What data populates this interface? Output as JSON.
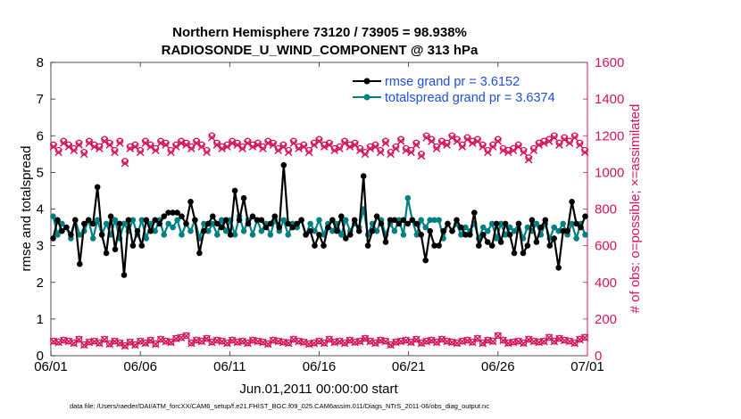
{
  "chart_data": {
    "type": "line",
    "title_line1": "Northern Hemisphere 73120 / 73905 = 98.938%",
    "title_line2": "RADIOSONDE_U_WIND_COMPONENT @ 313 hPa",
    "xlabel": "Jun.01,2011 00:00:00 start",
    "ylabel_left": "rmse and totalspread",
    "ylabel_right": "# of obs: o=possible; ×=assimilated",
    "footer": "data file: /Users/raeder/DAI/ATM_forcXX/CAM6_setup/f.e21.FHIST_BGC.f09_025.CAM6assim.011/Diags_NTrS_2011-06/obs_diag_output.nc",
    "x_ticks": [
      "06/01",
      "06/06",
      "06/11",
      "06/16",
      "06/21",
      "06/26",
      "07/01"
    ],
    "x_tick_days": [
      0,
      5,
      10,
      15,
      20,
      25,
      30
    ],
    "xlim_days": [
      0,
      30
    ],
    "ylim_left": [
      0,
      8
    ],
    "y_ticks_left": [
      "0",
      "1",
      "2",
      "3",
      "4",
      "5",
      "6",
      "7",
      "8"
    ],
    "ylim_right": [
      0,
      1600
    ],
    "y_ticks_right": [
      "0",
      "200",
      "400",
      "600",
      "800",
      "1000",
      "1200",
      "1400",
      "1600"
    ],
    "legend": [
      {
        "label": "rmse grand pr = 3.6152",
        "color": "#000000"
      },
      {
        "label": "totalspread grand pr = 3.6374",
        "color": "#008080"
      }
    ],
    "series": [
      {
        "name": "rmse",
        "color": "#000000",
        "axis": "left",
        "values": [
          3.2,
          3.7,
          3.4,
          3.5,
          3.3,
          3.7,
          2.5,
          3.6,
          3.7,
          3.6,
          4.6,
          3.3,
          2.8,
          3.8,
          2.9,
          3.6,
          2.2,
          3.7,
          3.0,
          3.4,
          3.0,
          3.7,
          3.4,
          3.7,
          3.6,
          3.8,
          3.9,
          3.9,
          3.9,
          3.8,
          3.6,
          4.2,
          3.7,
          2.8,
          3.4,
          3.6,
          3.8,
          3.6,
          3.5,
          3.7,
          3.3,
          4.5,
          3.7,
          4.3,
          3.6,
          3.8,
          3.7,
          3.7,
          3.5,
          3.6,
          3.8,
          3.5,
          5.2,
          3.6,
          3.5,
          3.6,
          3.7,
          3.3,
          3.4,
          3.0,
          3.3,
          3.0,
          3.5,
          3.7,
          3.4,
          3.8,
          3.2,
          3.3,
          3.7,
          3.4,
          4.9,
          3.0,
          3.4,
          3.8,
          3.6,
          3.1,
          3.7,
          3.7,
          3.6,
          3.7,
          3.6,
          3.7,
          3.6,
          3.3,
          2.6,
          3.4,
          3.0,
          3.0,
          3.4,
          3.6,
          3.4,
          3.7,
          3.5,
          3.3,
          3.3,
          3.9,
          3.0,
          3.3,
          3.1,
          3.0,
          3.6,
          3.1,
          3.6,
          3.3,
          2.8,
          3.6,
          2.8,
          3.0,
          3.7,
          3.1,
          3.5,
          3.7,
          3.0,
          3.2,
          2.4,
          3.4,
          3.4,
          4.2,
          3.6,
          3.5,
          3.8
        ]
      },
      {
        "name": "totalspread",
        "color": "#008080",
        "axis": "left",
        "values": [
          3.8,
          3.3,
          3.6,
          3.5,
          3.2,
          3.7,
          3.3,
          3.4,
          3.7,
          3.2,
          3.7,
          3.3,
          3.6,
          3.3,
          3.7,
          3.2,
          3.6,
          3.4,
          3.7,
          3.3,
          3.7,
          3.2,
          3.6,
          3.4,
          3.7,
          3.3,
          3.6,
          3.5,
          3.7,
          3.3,
          3.6,
          3.4,
          3.7,
          3.2,
          3.6,
          3.4,
          3.6,
          3.3,
          3.7,
          3.4,
          3.7,
          3.3,
          3.8,
          3.4,
          3.7,
          3.3,
          3.7,
          3.4,
          3.6,
          3.3,
          3.7,
          3.4,
          3.7,
          3.3,
          3.6,
          3.5,
          3.7,
          3.3,
          3.6,
          3.4,
          3.7,
          3.3,
          3.6,
          3.4,
          3.6,
          3.3,
          3.7,
          3.4,
          3.6,
          3.5,
          4.0,
          3.3,
          3.6,
          3.4,
          3.7,
          3.3,
          3.6,
          3.4,
          3.7,
          3.3,
          4.3,
          3.7,
          3.3,
          3.7,
          3.5,
          3.7,
          3.7,
          3.7,
          3.2,
          3.6,
          3.4,
          3.6,
          3.3,
          3.5,
          3.4,
          3.6,
          3.2,
          3.5,
          3.4,
          3.6,
          3.2,
          3.6,
          3.3,
          3.5,
          3.4,
          3.6,
          3.2,
          3.5,
          3.4,
          3.6,
          3.3,
          3.6,
          3.2,
          3.5,
          3.4,
          3.6,
          3.3,
          3.6,
          3.2,
          3.6,
          3.3
        ]
      },
      {
        "name": "obs possible (o)",
        "color": "#d4145a",
        "axis": "right",
        "marker": "circle",
        "values": [
          1150,
          1120,
          1170,
          1150,
          1130,
          1160,
          1110,
          1170,
          1150,
          1140,
          1180,
          1160,
          1120,
          1170,
          1060,
          1140,
          1150,
          1120,
          1170,
          1150,
          1130,
          1170,
          1160,
          1120,
          1150,
          1170,
          1160,
          1140,
          1170,
          1150,
          1120,
          1200,
          1160,
          1140,
          1150,
          1170,
          1160,
          1140,
          1170,
          1150,
          1160,
          1140,
          1170,
          1160,
          1130,
          1150,
          1120,
          1170,
          1140,
          1150,
          1120,
          1160,
          1180,
          1150,
          1160,
          1130,
          1140,
          1170,
          1150,
          1160,
          1130,
          1110,
          1140,
          1150,
          1120,
          1170,
          1110,
          1140,
          1180,
          1130,
          1120,
          1160,
          1100,
          1200,
          1180,
          1140,
          1170,
          1160,
          1200,
          1180,
          1150,
          1190,
          1170,
          1180,
          1150,
          1120,
          1150,
          1180,
          1130,
          1120,
          1130,
          1150,
          1120,
          1080,
          1130,
          1160,
          1170,
          1180,
          1200,
          1160,
          1190,
          1170,
          1200,
          1160,
          1120
        ]
      },
      {
        "name": "obs assimilated (×)",
        "color": "#d4145a",
        "axis": "right",
        "marker": "x",
        "values": [
          1140,
          1110,
          1160,
          1140,
          1120,
          1150,
          1100,
          1160,
          1140,
          1130,
          1170,
          1150,
          1110,
          1160,
          1050,
          1130,
          1140,
          1110,
          1160,
          1140,
          1120,
          1160,
          1150,
          1110,
          1140,
          1160,
          1150,
          1130,
          1160,
          1140,
          1110,
          1190,
          1150,
          1130,
          1140,
          1160,
          1150,
          1130,
          1160,
          1140,
          1150,
          1130,
          1160,
          1150,
          1120,
          1140,
          1110,
          1160,
          1130,
          1140,
          1110,
          1150,
          1170,
          1140,
          1150,
          1120,
          1130,
          1160,
          1140,
          1150,
          1120,
          1100,
          1130,
          1140,
          1110,
          1160,
          1100,
          1130,
          1170,
          1120,
          1110,
          1150,
          1090,
          1190,
          1170,
          1130,
          1160,
          1150,
          1190,
          1170,
          1140,
          1180,
          1160,
          1170,
          1140,
          1110,
          1140,
          1170,
          1120,
          1110,
          1120,
          1140,
          1110,
          1070,
          1120,
          1150,
          1160,
          1170,
          1190,
          1150,
          1180,
          1160,
          1190,
          1150,
          1110
        ]
      },
      {
        "name": "obs possible low (o)",
        "color": "#d4145a",
        "axis": "right",
        "marker": "circle",
        "values": [
          80,
          75,
          85,
          80,
          70,
          90,
          60,
          75,
          80,
          70,
          90,
          65,
          80,
          70,
          55,
          75,
          60,
          80,
          70,
          85,
          65,
          90,
          80,
          75,
          95,
          100,
          110,
          70,
          85,
          80,
          95,
          75,
          85,
          80,
          70,
          85,
          75,
          80,
          70,
          85,
          80,
          75,
          65,
          85,
          80,
          75,
          70,
          90,
          80,
          75,
          65,
          70,
          80,
          70,
          90,
          75,
          80,
          70,
          85,
          75,
          80,
          95,
          80,
          70,
          85,
          80,
          60,
          75,
          80,
          85,
          75,
          90,
          70,
          80,
          85,
          75,
          90,
          80,
          75,
          70,
          80,
          85,
          75,
          95,
          70,
          85,
          80,
          110,
          85,
          70,
          75,
          80,
          70,
          90,
          80,
          75,
          80,
          100,
          80,
          95,
          85,
          80,
          70,
          90,
          100
        ]
      },
      {
        "name": "obs assimilated low (×)",
        "color": "#d4145a",
        "axis": "right",
        "marker": "x",
        "values": [
          78,
          72,
          83,
          78,
          68,
          88,
          58,
          73,
          78,
          68,
          88,
          63,
          78,
          68,
          53,
          73,
          58,
          78,
          68,
          83,
          63,
          88,
          78,
          73,
          93,
          98,
          108,
          68,
          83,
          78,
          93,
          73,
          83,
          78,
          68,
          83,
          73,
          78,
          68,
          83,
          78,
          73,
          63,
          83,
          78,
          73,
          68,
          88,
          78,
          73,
          63,
          68,
          78,
          68,
          88,
          73,
          78,
          68,
          83,
          73,
          78,
          93,
          78,
          68,
          83,
          78,
          58,
          73,
          78,
          83,
          73,
          88,
          68,
          78,
          83,
          73,
          88,
          78,
          73,
          68,
          78,
          83,
          73,
          93,
          68,
          83,
          78,
          108,
          83,
          68,
          73,
          78,
          68,
          88,
          78,
          73,
          78,
          98,
          78,
          93,
          83,
          78,
          68,
          88,
          98
        ]
      }
    ]
  }
}
